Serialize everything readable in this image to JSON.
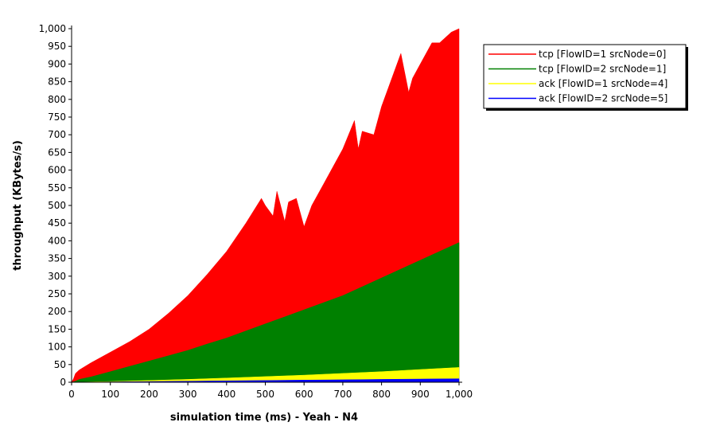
{
  "chart_data": {
    "type": "area",
    "xlabel": "simulation time (ms) - Yeah - N4",
    "ylabel": "throughput (KBytes/s)",
    "xlim": [
      0,
      1000
    ],
    "ylim": [
      0,
      1000
    ],
    "x_ticks": [
      "0",
      "100",
      "200",
      "300",
      "400",
      "500",
      "600",
      "700",
      "800",
      "900",
      "1,000"
    ],
    "y_ticks": [
      "0",
      "50",
      "100",
      "150",
      "200",
      "250",
      "300",
      "350",
      "400",
      "450",
      "500",
      "550",
      "600",
      "650",
      "700",
      "750",
      "800",
      "850",
      "900",
      "950",
      "1,000"
    ],
    "grid": false,
    "legend_position": "top-right",
    "series": [
      {
        "name": "tcp [FlowID=1 srcNode=0]",
        "color": "#ff0000",
        "x": [
          0,
          5,
          10,
          20,
          50,
          100,
          150,
          200,
          250,
          300,
          350,
          400,
          450,
          490,
          500,
          520,
          530,
          550,
          560,
          580,
          600,
          620,
          650,
          700,
          730,
          740,
          750,
          780,
          800,
          830,
          850,
          870,
          880,
          900,
          930,
          950,
          980,
          1000
        ],
        "values": [
          0,
          10,
          25,
          35,
          55,
          85,
          115,
          150,
          195,
          245,
          305,
          370,
          450,
          520,
          500,
          470,
          540,
          455,
          510,
          520,
          440,
          500,
          560,
          660,
          740,
          660,
          710,
          700,
          780,
          870,
          930,
          820,
          860,
          900,
          960,
          960,
          990,
          1000
        ]
      },
      {
        "name": "tcp [FlowID=2 srcNode=1]",
        "color": "#008000",
        "x": [
          0,
          10,
          20,
          50,
          100,
          150,
          200,
          250,
          300,
          350,
          400,
          450,
          500,
          550,
          600,
          650,
          700,
          750,
          800,
          850,
          900,
          950,
          1000
        ],
        "values": [
          0,
          3,
          8,
          15,
          30,
          45,
          60,
          75,
          90,
          108,
          125,
          145,
          165,
          185,
          205,
          225,
          245,
          270,
          295,
          320,
          345,
          370,
          395
        ]
      },
      {
        "name": "ack [FlowID=1 srcNode=4]",
        "color": "#ffff00",
        "x": [
          0,
          100,
          200,
          300,
          400,
          500,
          600,
          700,
          800,
          900,
          1000
        ],
        "values": [
          0,
          2,
          5,
          8,
          12,
          16,
          20,
          25,
          30,
          36,
          42
        ]
      },
      {
        "name": "ack [FlowID=2 srcNode=5]",
        "color": "#0000ff",
        "x": [
          0,
          100,
          200,
          300,
          400,
          500,
          600,
          700,
          800,
          900,
          1000
        ],
        "values": [
          0,
          1,
          2,
          3,
          4,
          5,
          6,
          7,
          8,
          9,
          10
        ]
      }
    ]
  }
}
